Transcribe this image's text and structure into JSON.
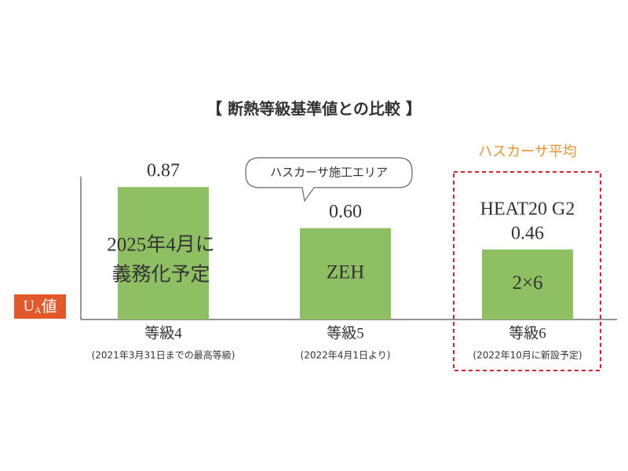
{
  "chart_data": {
    "type": "bar",
    "title": "【 断熱等級基準値との比較 】",
    "y_label": {
      "main": "U",
      "sub": "A",
      "suffix": "値"
    },
    "categories": [
      "等級4",
      "等級5",
      "等級6"
    ],
    "category_notes": [
      "(2021年3月31日までの最高等級)",
      "(2022年4月1日より)",
      "(2022年10月に新設予定)"
    ],
    "values": [
      0.87,
      0.6,
      0.46
    ],
    "value_labels": [
      "0.87",
      "0.60",
      "0.46"
    ],
    "bar_labels": [
      [
        "2025年4月に",
        "義務化予定"
      ],
      [
        "ZEH"
      ],
      [
        "2×6"
      ]
    ],
    "annotation": "HEAT20 G2",
    "callout": "ハスカーサ施工エリア",
    "highlight_label": "ハスカーサ平均",
    "color": "#8fbf63",
    "ylim": [
      0,
      1
    ]
  }
}
